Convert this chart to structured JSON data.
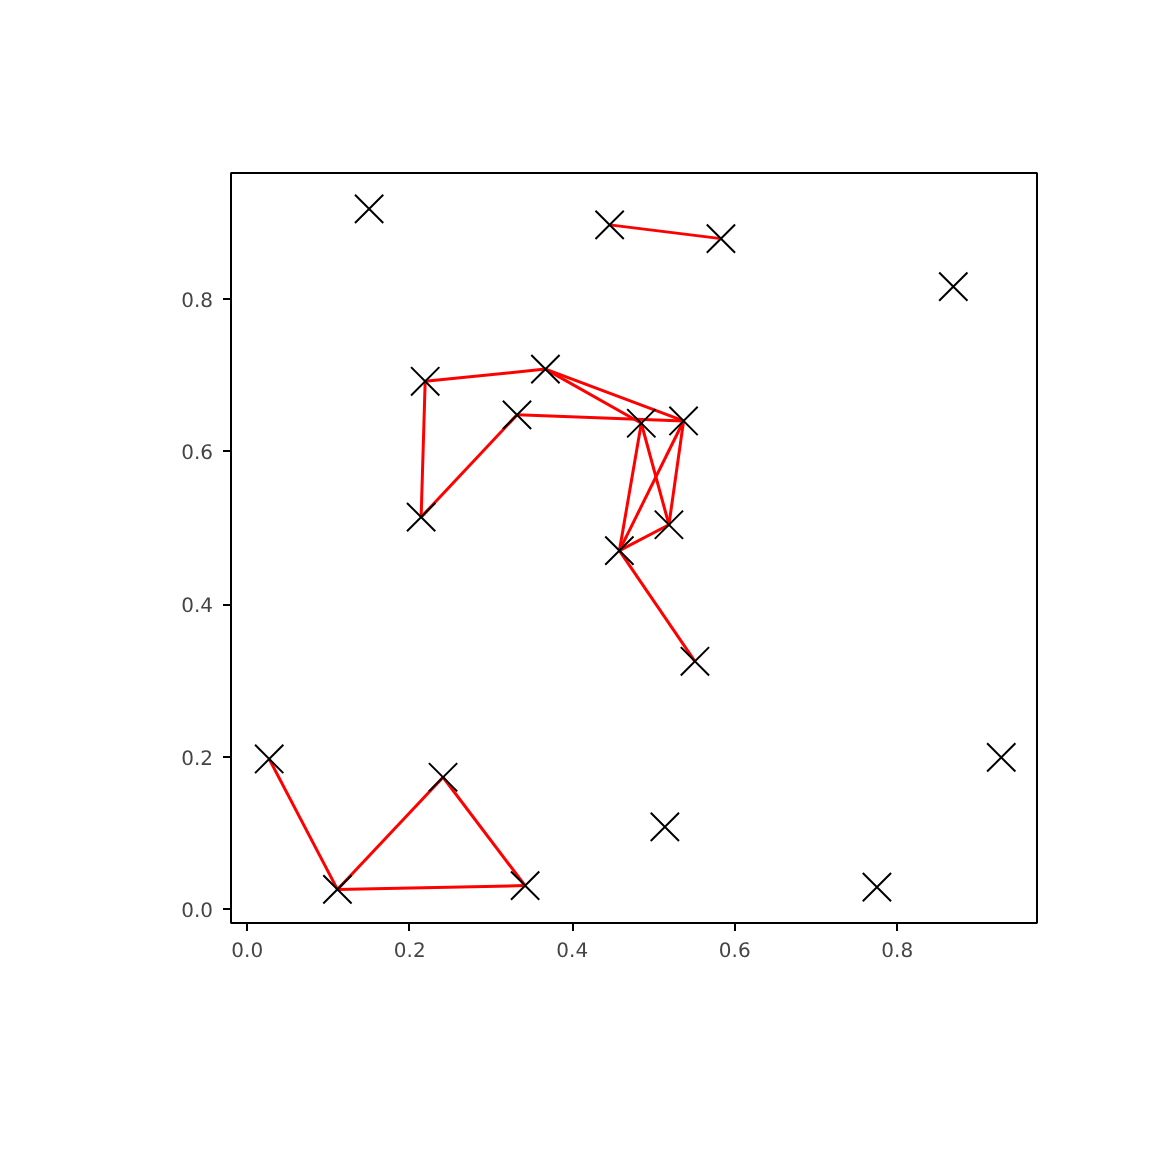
{
  "chart_data": {
    "type": "scatter",
    "xlim": [
      -0.02,
      0.972
    ],
    "ylim": [
      -0.018,
      0.965
    ],
    "xticks": [
      {
        "value": 0,
        "label": "0.0"
      },
      {
        "value": 0.2,
        "label": "0.2"
      },
      {
        "value": 0.4,
        "label": "0.4"
      },
      {
        "value": 0.6,
        "label": "0.6"
      },
      {
        "value": 0.8,
        "label": "0.8"
      }
    ],
    "yticks": [
      {
        "value": 0,
        "label": "0.0"
      },
      {
        "value": 0.2,
        "label": "0.2"
      },
      {
        "value": 0.4,
        "label": "0.4"
      },
      {
        "value": 0.6,
        "label": "0.6"
      },
      {
        "value": 0.8,
        "label": "0.8"
      }
    ],
    "grid": false,
    "series": [
      {
        "type": "line",
        "color": "#ff0000",
        "x": [
          0.446,
          0.583
        ],
        "values": [
          0.897,
          0.879
        ]
      },
      {
        "type": "line",
        "color": "#ff0000",
        "x": [
          0.219,
          0.367
        ],
        "values": [
          0.692,
          0.708
        ]
      },
      {
        "type": "line",
        "color": "#ff0000",
        "x": [
          0.219,
          0.214
        ],
        "values": [
          0.692,
          0.514
        ]
      },
      {
        "type": "line",
        "color": "#ff0000",
        "x": [
          0.214,
          0.332
        ],
        "values": [
          0.514,
          0.648
        ]
      },
      {
        "type": "line",
        "color": "#ff0000",
        "x": [
          0.332,
          0.537
        ],
        "values": [
          0.648,
          0.64
        ]
      },
      {
        "type": "line",
        "color": "#ff0000",
        "x": [
          0.367,
          0.485
        ],
        "values": [
          0.708,
          0.637
        ]
      },
      {
        "type": "line",
        "color": "#ff0000",
        "x": [
          0.367,
          0.537
        ],
        "values": [
          0.708,
          0.64
        ]
      },
      {
        "type": "line",
        "color": "#ff0000",
        "x": [
          0.485,
          0.458
        ],
        "values": [
          0.637,
          0.47
        ]
      },
      {
        "type": "line",
        "color": "#ff0000",
        "x": [
          0.485,
          0.519
        ],
        "values": [
          0.637,
          0.504
        ]
      },
      {
        "type": "line",
        "color": "#ff0000",
        "x": [
          0.537,
          0.458
        ],
        "values": [
          0.64,
          0.47
        ]
      },
      {
        "type": "line",
        "color": "#ff0000",
        "x": [
          0.537,
          0.519
        ],
        "values": [
          0.64,
          0.504
        ]
      },
      {
        "type": "line",
        "color": "#ff0000",
        "x": [
          0.458,
          0.519
        ],
        "values": [
          0.47,
          0.504
        ]
      },
      {
        "type": "line",
        "color": "#ff0000",
        "x": [
          0.458,
          0.551
        ],
        "values": [
          0.47,
          0.325
        ]
      },
      {
        "type": "line",
        "color": "#ff0000",
        "x": [
          0.027,
          0.111
        ],
        "values": [
          0.197,
          0.026
        ]
      },
      {
        "type": "line",
        "color": "#ff0000",
        "x": [
          0.111,
          0.241
        ],
        "values": [
          0.026,
          0.173
        ]
      },
      {
        "type": "line",
        "color": "#ff0000",
        "x": [
          0.241,
          0.342
        ],
        "values": [
          0.173,
          0.031
        ]
      },
      {
        "type": "line",
        "color": "#ff0000",
        "x": [
          0.111,
          0.342
        ],
        "values": [
          0.026,
          0.031
        ]
      },
      {
        "color": "#000000",
        "marker": "cross",
        "x": [
          0.15,
          0.446,
          0.583,
          0.869,
          0.219,
          0.367,
          0.332,
          0.485,
          0.537,
          0.214,
          0.458,
          0.519,
          0.551,
          0.027,
          0.241,
          0.928,
          0.111,
          0.342,
          0.514,
          0.775
        ],
        "values": [
          0.918,
          0.897,
          0.879,
          0.816,
          0.692,
          0.708,
          0.648,
          0.637,
          0.64,
          0.514,
          0.47,
          0.504,
          0.325,
          0.197,
          0.173,
          0.199,
          0.026,
          0.031,
          0.108,
          0.029
        ]
      }
    ]
  }
}
